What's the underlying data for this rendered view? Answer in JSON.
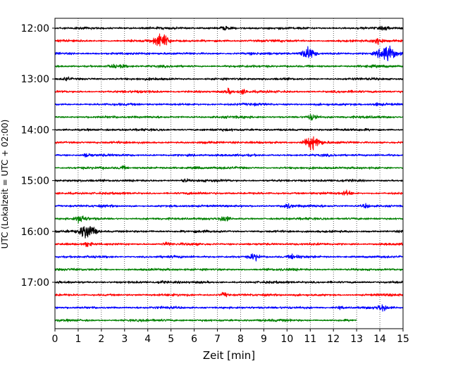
{
  "chart_data": {
    "type": "line",
    "xlabel": "Zeit  [min]",
    "ylabel": "UTC (Lokalzeit = UTC + 02:00)",
    "xlim": [
      0,
      15
    ],
    "x_ticks": [
      0,
      1,
      2,
      3,
      4,
      5,
      6,
      7,
      8,
      9,
      10,
      11,
      12,
      13,
      14,
      15
    ],
    "grid": "vertical dotted at each minute",
    "trace_interval_min": 15,
    "first_trace": "12:00",
    "last_trace": "17:45",
    "y_ticks": [
      "12:00",
      "13:00",
      "14:00",
      "15:00",
      "16:00",
      "17:00"
    ],
    "color_cycle": [
      "#000000",
      "#ff0000",
      "#0000ff",
      "#008000"
    ],
    "last_trace_end_min": 13.0,
    "traces": [
      {
        "time": "12:00",
        "events": [
          {
            "t": 7.3,
            "amp": 0.25
          },
          {
            "t": 14.2,
            "amp": 0.2
          }
        ]
      },
      {
        "time": "12:15",
        "events": [
          {
            "t": 4.6,
            "amp": 1.0
          },
          {
            "t": 13.9,
            "amp": 0.5
          }
        ]
      },
      {
        "time": "12:30",
        "events": [
          {
            "t": 10.9,
            "amp": 0.9
          },
          {
            "t": 14.3,
            "amp": 1.2
          }
        ]
      },
      {
        "time": "12:45",
        "events": [
          {
            "t": 2.5,
            "amp": 0.2
          },
          {
            "t": 2.9,
            "amp": 0.2
          }
        ]
      },
      {
        "time": "13:00",
        "events": [
          {
            "t": 0.5,
            "amp": 0.25
          }
        ]
      },
      {
        "time": "13:15",
        "events": [
          {
            "t": 7.5,
            "amp": 0.3
          },
          {
            "t": 8.1,
            "amp": 0.3
          }
        ]
      },
      {
        "time": "13:30",
        "events": [
          {
            "t": 13.9,
            "amp": 0.15
          }
        ]
      },
      {
        "time": "13:45",
        "events": [
          {
            "t": 11.1,
            "amp": 0.45
          }
        ]
      },
      {
        "time": "14:00",
        "events": []
      },
      {
        "time": "14:15",
        "events": [
          {
            "t": 10.9,
            "amp": 0.5
          },
          {
            "t": 11.2,
            "amp": 0.8
          }
        ]
      },
      {
        "time": "14:30",
        "events": [
          {
            "t": 1.4,
            "amp": 0.25
          }
        ]
      },
      {
        "time": "14:45",
        "events": [
          {
            "t": 2.9,
            "amp": 0.2
          },
          {
            "t": 6.1,
            "amp": 0.15
          }
        ]
      },
      {
        "time": "15:00",
        "events": [
          {
            "t": 5.6,
            "amp": 0.2
          }
        ]
      },
      {
        "time": "15:15",
        "events": [
          {
            "t": 12.6,
            "amp": 0.3
          }
        ]
      },
      {
        "time": "15:30",
        "events": [
          {
            "t": 10.0,
            "amp": 0.4
          },
          {
            "t": 13.4,
            "amp": 0.25
          }
        ]
      },
      {
        "time": "15:45",
        "events": [
          {
            "t": 1.1,
            "amp": 0.5
          },
          {
            "t": 7.3,
            "amp": 0.35
          }
        ]
      },
      {
        "time": "16:00",
        "events": [
          {
            "t": 1.4,
            "amp": 1.1
          }
        ]
      },
      {
        "time": "16:15",
        "events": [
          {
            "t": 1.4,
            "amp": 0.3
          },
          {
            "t": 4.8,
            "amp": 0.2
          }
        ]
      },
      {
        "time": "16:30",
        "events": [
          {
            "t": 8.6,
            "amp": 0.5
          },
          {
            "t": 10.3,
            "amp": 0.3
          }
        ]
      },
      {
        "time": "16:45",
        "events": []
      },
      {
        "time": "17:00",
        "events": [
          {
            "t": 4.6,
            "amp": 0.15
          }
        ]
      },
      {
        "time": "17:15",
        "events": [
          {
            "t": 7.3,
            "amp": 0.3
          }
        ]
      },
      {
        "time": "17:30",
        "events": [
          {
            "t": 14.1,
            "amp": 0.45
          },
          {
            "t": 12.3,
            "amp": 0.2
          }
        ]
      },
      {
        "time": "17:45",
        "events": []
      }
    ]
  }
}
